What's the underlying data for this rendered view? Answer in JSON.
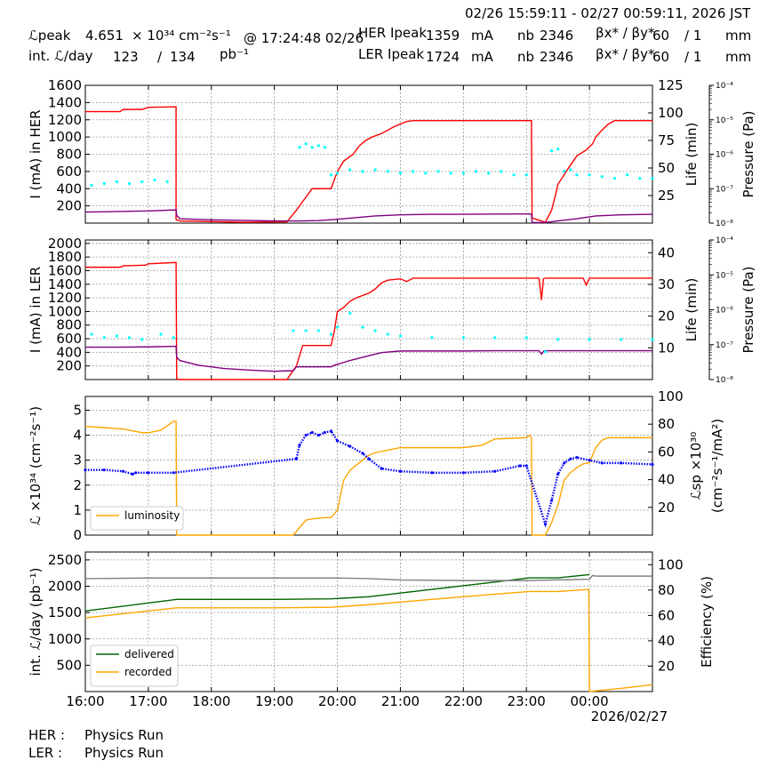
{
  "header": {
    "time_range": "02/26 15:59:11 - 02/27 00:59:11, 2026 JST",
    "row1": {
      "lpeak_label": "ℒpeak",
      "lpeak_value": "4.651",
      "lpeak_unit": "× 10³⁴ cm⁻²s⁻¹",
      "lpeak_time": "@ 17:24:48 02/26",
      "her_label": "HER Ipeak",
      "her_value": "1359",
      "her_unit": "mA",
      "nb_label": "nb",
      "her_nb": "2346",
      "beta_label": "βx* / βy*",
      "her_beta_x": "60",
      "her_beta_y": "/ 1",
      "beta_unit": "mm"
    },
    "row2": {
      "int_label": "int. ℒ/day",
      "int_value1": "123",
      "int_sep": "/",
      "int_value2": "134",
      "int_unit": "pb⁻¹",
      "ler_label": "LER Ipeak",
      "ler_value": "1724",
      "ler_unit": "mA",
      "nb_label": "nb",
      "ler_nb": "2346",
      "beta_label": "βx* / βy*",
      "ler_beta_x": "60",
      "ler_beta_y": "/ 1",
      "beta_unit": "mm"
    }
  },
  "footer": {
    "her_label": "HER :",
    "her_status": "Physics Run",
    "ler_label": "LER :",
    "ler_status": "Physics Run"
  },
  "colors": {
    "current": "#ff0000",
    "life": "#800080",
    "pressure": "#00ffff",
    "luminosity": "#ffa500",
    "specific": "#0000ff",
    "delivered": "#006400",
    "recorded": "#ffa500",
    "efficiency": "#808080"
  },
  "chart_data": [
    {
      "id": "her",
      "type": "line",
      "x_ticks": [
        "16:00",
        "17:00",
        "18:00",
        "19:00",
        "20:00",
        "21:00",
        "22:00",
        "23:00",
        "00:00"
      ],
      "xlim": [
        0,
        9
      ],
      "ylabel": "I (mA) in HER",
      "ylim": [
        0,
        1600
      ],
      "yticks": [
        200,
        400,
        600,
        800,
        1000,
        1200,
        1400,
        1600
      ],
      "y2label": "Life (min)",
      "y2lim": [
        0,
        125
      ],
      "y2ticks": [
        25,
        50,
        75,
        100,
        125
      ],
      "y3label": "Pressure (Pa)",
      "y3ticks": [
        "10⁻⁸",
        "10⁻⁷",
        "10⁻⁶",
        "10⁻⁵",
        "10⁻⁴"
      ],
      "series": [
        {
          "name": "current",
          "axis": "left",
          "x": [
            0,
            0.55,
            0.6,
            0.9,
            1.0,
            1.44,
            1.44,
            1.5,
            2.5,
            3.2,
            3.35,
            3.6,
            3.85,
            3.9,
            4.0,
            4.1,
            4.25,
            4.35,
            4.45,
            4.55,
            4.7,
            4.9,
            5.1,
            5.2,
            5.4,
            5.8,
            6.4,
            7.0,
            7.08,
            7.09,
            7.3,
            7.4,
            7.47,
            7.5,
            7.65,
            7.8,
            7.95,
            8.05,
            8.1,
            8.2,
            8.3,
            8.4,
            8.5,
            9.0
          ],
          "y": [
            1295,
            1295,
            1320,
            1320,
            1345,
            1350,
            40,
            25,
            10,
            15,
            150,
            400,
            400,
            400,
            600,
            720,
            800,
            900,
            960,
            1000,
            1040,
            1120,
            1180,
            1190,
            1190,
            1190,
            1190,
            1190,
            1190,
            60,
            10,
            150,
            350,
            450,
            620,
            780,
            850,
            920,
            1000,
            1080,
            1150,
            1190,
            1190,
            1190
          ]
        },
        {
          "name": "life",
          "axis": "right",
          "x": [
            0,
            0.5,
            1.0,
            1.44,
            1.45,
            1.5,
            2.0,
            2.5,
            3.0,
            3.4,
            3.7,
            4.0,
            4.3,
            4.6,
            5.0,
            5.5,
            6.0,
            6.5,
            7.0,
            7.08,
            7.09,
            7.3,
            7.5,
            7.8,
            8.1,
            8.5,
            9.0
          ],
          "y": [
            10,
            10.5,
            11,
            12,
            7,
            4,
            3,
            2.5,
            2,
            2,
            2.3,
            3.5,
            5,
            6.5,
            7.5,
            8,
            8,
            8.2,
            8.3,
            8.3,
            0.5,
            0.5,
            2,
            4,
            6.5,
            7.5,
            8
          ]
        },
        {
          "name": "pressure",
          "axis": "right3",
          "x": [
            0.1,
            0.3,
            0.5,
            0.7,
            0.9,
            1.1,
            1.3,
            3.4,
            3.5,
            3.6,
            3.7,
            3.8,
            3.9,
            4.0,
            4.2,
            4.4,
            4.6,
            4.8,
            5.0,
            5.2,
            5.4,
            5.6,
            5.8,
            6.0,
            6.2,
            6.4,
            6.6,
            6.8,
            7.0,
            7.4,
            7.5,
            7.6,
            7.7,
            7.8,
            8.0,
            8.2,
            8.4,
            8.6,
            8.8,
            9.0
          ],
          "y": [
            -6.9,
            -6.85,
            -6.8,
            -6.85,
            -6.8,
            -6.75,
            -6.8,
            -5.8,
            -5.7,
            -5.8,
            -5.75,
            -5.8,
            -6.6,
            -6.55,
            -6.45,
            -6.5,
            -6.45,
            -6.5,
            -6.55,
            -6.5,
            -6.55,
            -6.5,
            -6.55,
            -6.55,
            -6.5,
            -6.55,
            -6.5,
            -6.6,
            -6.6,
            -5.9,
            -5.85,
            -6.5,
            -6.45,
            -6.6,
            -6.6,
            -6.65,
            -6.7,
            -6.6,
            -6.7,
            -6.7
          ]
        }
      ]
    },
    {
      "id": "ler",
      "type": "line",
      "x_ticks": [
        "16:00",
        "17:00",
        "18:00",
        "19:00",
        "20:00",
        "21:00",
        "22:00",
        "23:00",
        "00:00"
      ],
      "xlim": [
        0,
        9
      ],
      "ylabel": "I (mA) in LER",
      "ylim": [
        0,
        2050
      ],
      "yticks": [
        200,
        400,
        600,
        800,
        1000,
        1200,
        1400,
        1600,
        1800,
        2000
      ],
      "y2label": "Life (min)",
      "y2lim": [
        0,
        44
      ],
      "y2ticks": [
        10,
        20,
        30,
        40
      ],
      "y3label": "Pressure (Pa)",
      "y3ticks": [
        "10⁻⁸",
        "10⁻⁷",
        "10⁻⁶",
        "10⁻⁵",
        "10⁻⁴"
      ],
      "series": [
        {
          "name": "current",
          "axis": "left",
          "x": [
            0,
            0.55,
            0.6,
            0.95,
            1.0,
            1.44,
            1.45,
            1.5,
            2.5,
            3.0,
            3.2,
            3.35,
            3.45,
            3.9,
            3.95,
            4.0,
            4.1,
            4.2,
            4.3,
            4.5,
            4.6,
            4.7,
            4.8,
            5.0,
            5.1,
            5.2,
            5.5,
            6.0,
            6.5,
            7.0,
            7.2,
            7.24,
            7.27,
            7.3,
            7.5,
            7.9,
            7.95,
            8.0,
            8.5,
            9.0
          ],
          "y": [
            1650,
            1650,
            1670,
            1680,
            1700,
            1720,
            10,
            0,
            0,
            0,
            0,
            200,
            500,
            500,
            700,
            1000,
            1060,
            1150,
            1200,
            1270,
            1330,
            1420,
            1460,
            1480,
            1440,
            1490,
            1490,
            1490,
            1490,
            1490,
            1490,
            1170,
            1480,
            1490,
            1490,
            1490,
            1390,
            1490,
            1490,
            1490
          ]
        },
        {
          "name": "life",
          "axis": "right",
          "x": [
            0,
            0.5,
            1.0,
            1.44,
            1.45,
            1.5,
            1.8,
            2.2,
            2.6,
            3.0,
            3.3,
            3.35,
            3.9,
            3.95,
            4.2,
            4.5,
            4.7,
            5.0,
            5.5,
            6.0,
            6.5,
            7.0,
            7.2,
            7.24,
            7.28,
            7.5,
            8.0,
            8.5,
            9.0
          ],
          "y": [
            10.2,
            10.2,
            10.3,
            10.5,
            7,
            6,
            4.5,
            3.5,
            3,
            2.6,
            2.8,
            4,
            4,
            4.5,
            6,
            7.5,
            8.5,
            9,
            9,
            9,
            9.1,
            9.1,
            9.1,
            8,
            9.1,
            9.1,
            9.1,
            9.1,
            9.1
          ]
        },
        {
          "name": "pressure",
          "axis": "right3",
          "x": [
            0.1,
            0.3,
            0.5,
            0.7,
            0.9,
            1.2,
            1.4,
            3.3,
            3.5,
            3.7,
            3.9,
            4.0,
            4.2,
            4.4,
            4.6,
            4.8,
            5.0,
            5.5,
            6.0,
            6.5,
            7.0,
            7.3,
            7.5,
            8.0,
            8.5,
            9.0
          ],
          "y": [
            -6.7,
            -6.8,
            -6.75,
            -6.8,
            -6.85,
            -6.7,
            -6.8,
            -6.6,
            -6.6,
            -6.6,
            -6.7,
            -6.5,
            -6.1,
            -6.5,
            -6.6,
            -6.7,
            -6.75,
            -6.8,
            -6.8,
            -6.8,
            -6.8,
            -7.2,
            -6.85,
            -6.85,
            -6.85,
            -6.85
          ]
        }
      ]
    },
    {
      "id": "lum",
      "type": "line",
      "x_ticks": [
        "16:00",
        "17:00",
        "18:00",
        "19:00",
        "20:00",
        "21:00",
        "22:00",
        "23:00",
        "00:00"
      ],
      "xlim": [
        0,
        9
      ],
      "ylabel": "ℒ ×10³⁴ (cm⁻²s⁻¹)",
      "ylim": [
        0,
        5.55
      ],
      "yticks": [
        0,
        1,
        2,
        3,
        4,
        5
      ],
      "y2label": "ℒsp ×10³⁰ (cm⁻²s⁻¹/mA²)",
      "y2lim": [
        0,
        100
      ],
      "y2ticks": [
        20,
        40,
        60,
        80,
        100
      ],
      "legend": [
        "luminosity"
      ],
      "series": [
        {
          "name": "luminosity",
          "axis": "left",
          "x": [
            0,
            0.3,
            0.6,
            0.9,
            1.0,
            1.2,
            1.4,
            1.44,
            1.45,
            1.5,
            2.5,
            3.0,
            3.3,
            3.4,
            3.5,
            3.6,
            3.8,
            3.9,
            4.0,
            4.1,
            4.2,
            4.3,
            4.4,
            4.5,
            4.6,
            4.8,
            5.0,
            5.5,
            6.0,
            6.3,
            6.5,
            7.0,
            7.05,
            7.08,
            7.09,
            7.3,
            7.4,
            7.5,
            7.6,
            7.7,
            7.8,
            7.9,
            8.0,
            8.1,
            8.2,
            8.3,
            8.5,
            9.0
          ],
          "y": [
            4.35,
            4.3,
            4.25,
            4.1,
            4.1,
            4.2,
            4.55,
            4.55,
            0,
            0,
            0,
            0,
            0,
            0.3,
            0.6,
            0.65,
            0.7,
            0.7,
            1.0,
            2.2,
            2.6,
            2.8,
            3.0,
            3.2,
            3.3,
            3.4,
            3.5,
            3.5,
            3.5,
            3.6,
            3.85,
            3.9,
            4.0,
            3.9,
            0,
            0,
            0.5,
            1.2,
            2.2,
            2.5,
            2.7,
            2.85,
            2.9,
            3.5,
            3.8,
            3.9,
            3.9,
            3.9
          ]
        },
        {
          "name": "specific",
          "axis": "right",
          "x": [
            0,
            0.3,
            0.6,
            0.75,
            0.8,
            1.0,
            1.4,
            3.35,
            3.4,
            3.5,
            3.6,
            3.7,
            3.8,
            3.9,
            4.0,
            4.2,
            4.4,
            4.5,
            4.7,
            5.0,
            5.5,
            6.0,
            6.5,
            6.9,
            7.0,
            7.3,
            7.4,
            7.5,
            7.6,
            7.7,
            7.8,
            8.0,
            8.2,
            8.5,
            9.0
          ],
          "y": [
            47,
            47,
            46,
            44,
            45,
            45,
            45,
            55,
            65,
            72,
            74,
            72,
            74,
            75,
            68,
            64,
            59,
            55,
            48,
            46,
            45,
            45,
            46,
            50,
            50,
            8,
            25,
            44,
            52,
            55,
            56,
            54,
            52,
            52,
            51
          ]
        }
      ]
    },
    {
      "id": "int",
      "type": "line",
      "x_ticks": [
        "16:00",
        "17:00",
        "18:00",
        "19:00",
        "20:00",
        "21:00",
        "22:00",
        "23:00",
        "00:00"
      ],
      "xlim": [
        0,
        9
      ],
      "x_date_label": "2026/02/27",
      "ylabel": "int. ℒ/day (pb⁻¹)",
      "ylim": [
        0,
        2650
      ],
      "yticks": [
        500,
        1000,
        1500,
        2000,
        2500
      ],
      "y2label": "Efficiency (%)",
      "y2lim": [
        0,
        110
      ],
      "y2ticks": [
        20,
        40,
        60,
        80,
        100
      ],
      "legend": [
        "delivered",
        "recorded"
      ],
      "series": [
        {
          "name": "delivered",
          "axis": "left",
          "x": [
            0,
            1.45,
            3.0,
            3.9,
            4.5,
            5.0,
            5.5,
            6.0,
            6.5,
            7.05,
            7.5,
            8.0
          ],
          "y": [
            1530,
            1750,
            1750,
            1760,
            1800,
            1870,
            1940,
            2010,
            2080,
            2160,
            2160,
            2220
          ]
        },
        {
          "name": "recorded",
          "axis": "left",
          "x": [
            0,
            1.45,
            3.0,
            3.9,
            4.5,
            5.0,
            5.5,
            6.0,
            6.5,
            7.05,
            7.5,
            7.99,
            8.0,
            8.5,
            9.0
          ],
          "y": [
            1400,
            1590,
            1590,
            1600,
            1650,
            1700,
            1750,
            1800,
            1850,
            1900,
            1900,
            1940,
            0,
            60,
            130
          ]
        },
        {
          "name": "efficiency",
          "axis": "right",
          "x": [
            0,
            1.0,
            2.0,
            3.0,
            4.0,
            4.5,
            5.0,
            6.0,
            7.0,
            8.0,
            8.05,
            8.1,
            9.0
          ],
          "y": [
            89,
            89.5,
            89.5,
            89.5,
            89.5,
            89,
            88,
            87.5,
            87.5,
            88.5,
            91.5,
            91,
            91
          ]
        }
      ]
    }
  ]
}
